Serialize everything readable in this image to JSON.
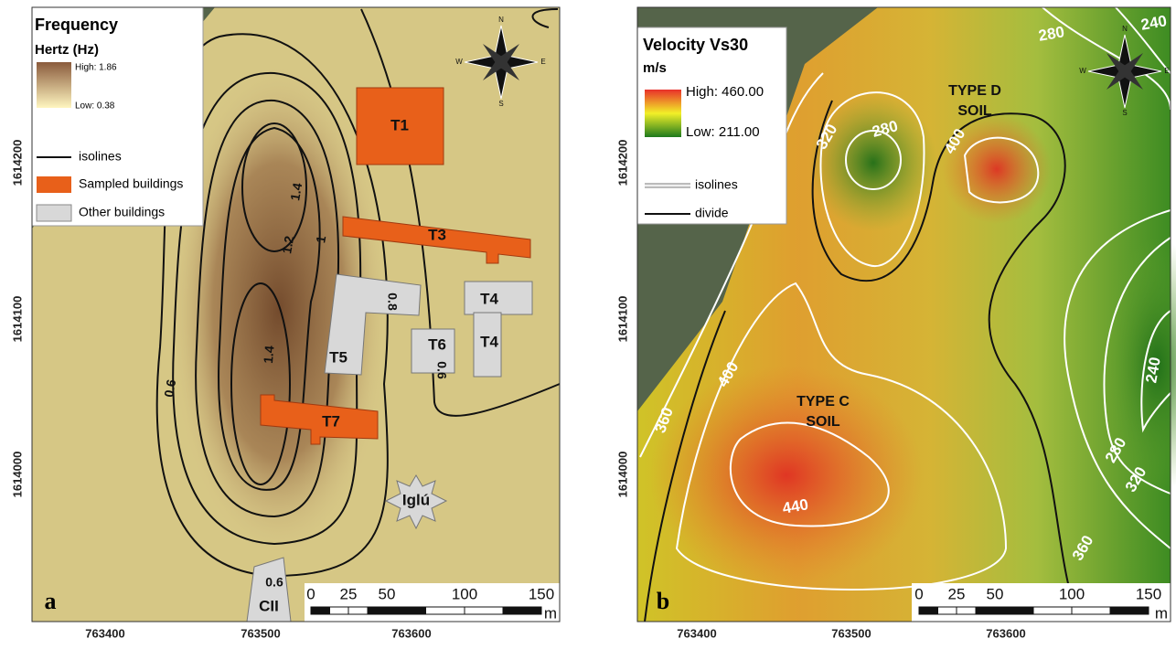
{
  "panels": [
    {
      "letter": "a",
      "legend": {
        "title": "Frequency",
        "unit": "Hertz (Hz)",
        "high": "High: 1.86",
        "low": "Low: 0.38",
        "items": [
          "isolines",
          "Sampled buildings",
          "Other buildings"
        ]
      },
      "x_ticks": [
        763400,
        763500,
        763600
      ],
      "y_ticks": [
        1614200,
        1614100,
        1614000
      ],
      "scale_bar": {
        "labels": [
          0,
          25,
          50,
          100,
          150
        ],
        "unit": "m"
      },
      "compass": [
        "N",
        "S",
        "E",
        "W"
      ],
      "map_labels": [
        "T1",
        "T3",
        "T4",
        "T4",
        "T5",
        "T6",
        "T7",
        "Iglú",
        "CII"
      ],
      "contour_labels": [
        "1.4",
        "1.2",
        "1",
        "0.8",
        "0.6",
        "1.4",
        "0.6",
        "0.6"
      ]
    },
    {
      "letter": "b",
      "legend": {
        "title": "Velocity Vs30",
        "unit": "m/s",
        "high": "High: 460.00",
        "low": "Low: 211.00",
        "items": [
          "isolines",
          "divide"
        ]
      },
      "x_ticks": [
        763400,
        763500,
        763600
      ],
      "y_ticks": [
        1614200,
        1614100,
        1614000
      ],
      "scale_bar": {
        "labels": [
          0,
          25,
          50,
          100,
          150
        ],
        "unit": "m"
      },
      "compass": [
        "N",
        "S",
        "E",
        "W"
      ],
      "zone_labels": [
        [
          "TYPE D",
          "SOIL"
        ],
        [
          "TYPE C",
          "SOIL"
        ]
      ],
      "contour_labels": [
        "320",
        "280",
        "400",
        "400",
        "360",
        "440",
        "240",
        "280",
        "320",
        "360",
        "280",
        "240"
      ]
    }
  ]
}
